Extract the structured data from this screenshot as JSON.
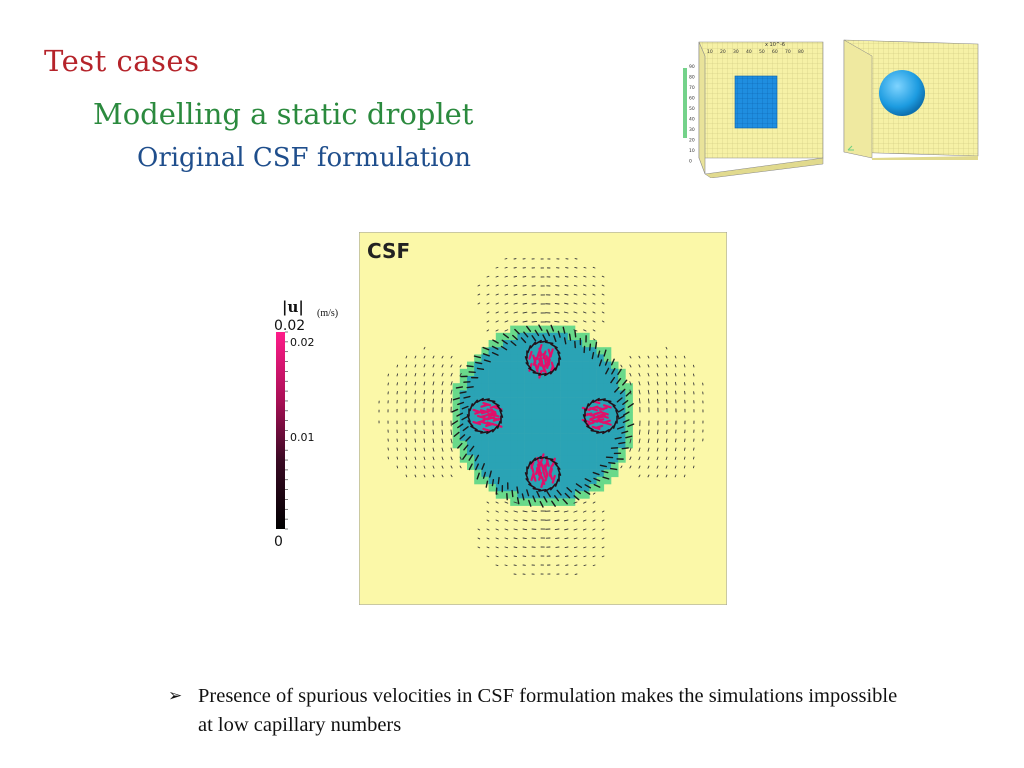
{
  "slide": {
    "title": "Test cases",
    "subtitle": "Modelling a static droplet",
    "subsubtitle": "Original CSF formulation",
    "bullet_mark": "➢",
    "bullet_text": "Presence of spurious velocities in CSF formulation makes the simulations impossible at low capillary numbers",
    "colors": {
      "title": "#b5232a",
      "subtitle": "#2b8a3e",
      "subsubtitle": "#1f4e8c"
    }
  },
  "figure": {
    "plot_label": "CSF",
    "colorbar": {
      "symbol": "|u|",
      "unit": "(m/s)",
      "max_label": "0.02",
      "tick_top": "0.02",
      "tick_mid": "0.01",
      "min_label": "0"
    },
    "colors": {
      "background": "#fbf8a8",
      "droplet": "#2aa3b5",
      "interface": "#69d98a",
      "vectors_high": "#e0106a",
      "vectors_low": "#1a1a1a"
    }
  },
  "thumbnails": {
    "cube_axis_label": "x 10^-6",
    "cube_ticks": [
      "10",
      "20",
      "30",
      "40",
      "50",
      "60",
      "70",
      "80"
    ],
    "cube_y_ticks": [
      "90",
      "80",
      "70",
      "60",
      "50",
      "40",
      "30",
      "20",
      "10",
      "0"
    ]
  }
}
